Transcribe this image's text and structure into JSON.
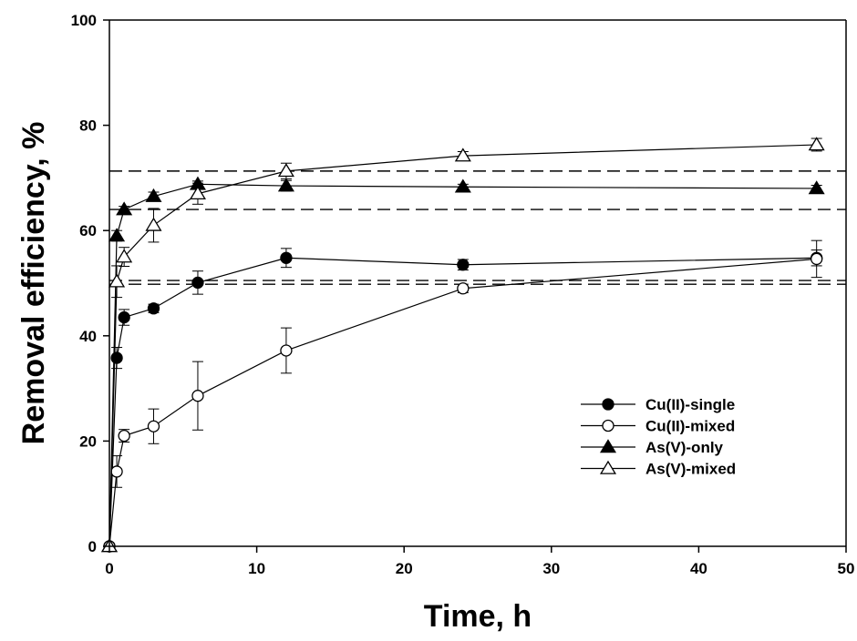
{
  "chart_data": {
    "type": "scatter",
    "xlabel": "Time, h",
    "ylabel": "Removal efficiency, %",
    "xlim": [
      0,
      50
    ],
    "ylim": [
      0,
      100
    ],
    "x_ticks": [
      "0",
      "10",
      "20",
      "30",
      "40",
      "50"
    ],
    "y_ticks": [
      "0",
      "20",
      "40",
      "60",
      "80",
      "100"
    ],
    "grid": false,
    "legend_position": "bottom-right",
    "reference_lines_y": [
      71.3,
      64.0,
      50.5,
      49.8
    ],
    "series": [
      {
        "name": "Cu(II)-single",
        "marker": "filled-circle",
        "color": "#000000",
        "x": [
          0,
          0.5,
          1,
          3,
          6,
          12,
          24,
          48
        ],
        "y": [
          0,
          35.8,
          43.5,
          45.2,
          50.1,
          54.8,
          53.5,
          54.8
        ],
        "error": [
          0,
          2.0,
          1.5,
          0.8,
          2.2,
          1.8,
          1.0,
          1.5
        ]
      },
      {
        "name": "Cu(II)-mixed",
        "marker": "open-circle",
        "color": "#000000",
        "x": [
          0,
          0.5,
          1,
          3,
          6,
          12,
          24,
          48
        ],
        "y": [
          0,
          14.2,
          21.0,
          22.8,
          28.6,
          37.2,
          49.0,
          54.6
        ],
        "error": [
          0,
          3.0,
          1.2,
          3.3,
          6.5,
          4.3,
          0.8,
          3.5
        ]
      },
      {
        "name": "As(V)-only",
        "marker": "filled-triangle",
        "color": "#000000",
        "x": [
          0,
          0.5,
          1,
          3,
          6,
          12,
          24,
          48
        ],
        "y": [
          0,
          59.0,
          64.0,
          66.5,
          68.8,
          68.5,
          68.3,
          68.0
        ],
        "error": [
          0,
          1.0,
          0.6,
          0.8,
          0.6,
          1.0,
          0.5,
          0.6
        ]
      },
      {
        "name": "As(V)-mixed",
        "marker": "open-triangle",
        "color": "#000000",
        "x": [
          0,
          0.5,
          1,
          3,
          6,
          12,
          24,
          48
        ],
        "y": [
          0,
          50.3,
          55.0,
          61.0,
          67.0,
          71.3,
          74.2,
          76.3
        ],
        "error": [
          0,
          3.0,
          1.8,
          3.2,
          2.0,
          1.5,
          0.8,
          1.2
        ]
      }
    ]
  }
}
